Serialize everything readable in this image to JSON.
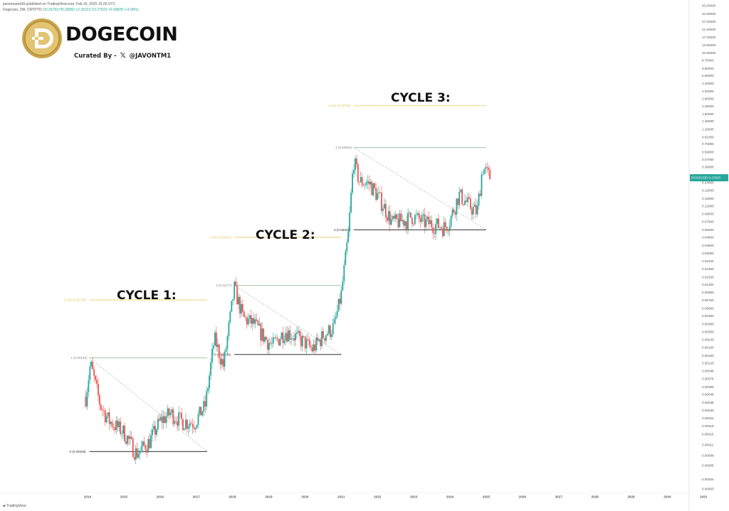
{
  "header": {
    "published_line": "javonmarks09 published on TradingView.com, Feb 16, 2025 15:29 UTC",
    "symbol_line": "Dogecoin, 2W, CRYPTO",
    "ohlc": "O0.26763 H0.28082 L0.25223 C0.27623 +0.00828 (+3.09%)"
  },
  "branding": {
    "title": "DOGECOIN",
    "curated_prefix": "Curated By -",
    "x_glyph": "𝕏",
    "handle": "@JAVONTM1"
  },
  "footer": {
    "logo_text": "TradingView"
  },
  "cycles": {
    "cycle1": "CYCLE 1:",
    "cycle2": "CYCLE 2:",
    "cycle3": "CYCLE 3:"
  },
  "colors": {
    "up": "#26a69a",
    "down": "#ef5350",
    "fib_gold": "#e6c65a",
    "fib_green": "#8ab89a",
    "price_tag": "#26a69a"
  },
  "chart_data": {
    "type": "candlestick",
    "timeframe": "2W",
    "scale": "log",
    "symbol": "DOGEUSD",
    "last_price": "0.27623",
    "last_change": "3.09%",
    "x_ticks": [
      "2014",
      "2015",
      "2016",
      "2017",
      "2018",
      "2019",
      "2020",
      "2021",
      "2022",
      "2023",
      "2024",
      "2025",
      "2026",
      "2027",
      "2028",
      "2029",
      "2030",
      "2031"
    ],
    "y_ticks": [
      "43.00000",
      "34.00000",
      "27.00000",
      "21.50000",
      "17.00000",
      "13.50000",
      "10.80000",
      "8.70000",
      "6.80000",
      "5.50000",
      "4.40000",
      "3.50000",
      "2.80000",
      "2.25000",
      "1.80000",
      "1.45000",
      "1.15000",
      "0.91000",
      "0.75000",
      "0.59000",
      "0.47000",
      "0.38000",
      "0.30000",
      "0.24000",
      "0.19000",
      "0.15000",
      "0.12000",
      "0.09600",
      "0.07600",
      "0.06000",
      "0.04800",
      "0.03800",
      "0.03000",
      "0.02400",
      "0.01900",
      "0.01500",
      "0.01200",
      "0.00960",
      "0.00760",
      "0.00600",
      "0.00480",
      "0.00380",
      "0.00300",
      "0.00240",
      "0.00190",
      "0.00150",
      "0.00120",
      "0.00096",
      "0.00076",
      "0.00060",
      "0.00048",
      "0.00038",
      "0.00030",
      "0.00024",
      "0.00019",
      "0.00015",
      "0.00011",
      "0.00008",
      "0.00006",
      "0.00004",
      "0.00003"
    ],
    "anchors": [
      {
        "t": 2013.95,
        "p": 0.00045
      },
      {
        "t": 2014.08,
        "p": 0.0012
      },
      {
        "t": 2014.35,
        "p": 0.00035
      },
      {
        "t": 2014.6,
        "p": 0.00022
      },
      {
        "t": 2015.0,
        "p": 0.00016
      },
      {
        "t": 2015.35,
        "p": 8.5e-05
      },
      {
        "t": 2015.7,
        "p": 0.00012
      },
      {
        "t": 2016.0,
        "p": 0.00022
      },
      {
        "t": 2016.3,
        "p": 0.00028
      },
      {
        "t": 2016.6,
        "p": 0.00022
      },
      {
        "t": 2016.95,
        "p": 0.00021
      },
      {
        "t": 2017.25,
        "p": 0.00035
      },
      {
        "t": 2017.5,
        "p": 0.0025
      },
      {
        "t": 2017.75,
        "p": 0.0011
      },
      {
        "t": 2018.0,
        "p": 0.0075
      },
      {
        "t": 2018.05,
        "p": 0.011
      },
      {
        "t": 2018.3,
        "p": 0.0045
      },
      {
        "t": 2018.6,
        "p": 0.0038
      },
      {
        "t": 2018.9,
        "p": 0.0025
      },
      {
        "t": 2019.1,
        "p": 0.002
      },
      {
        "t": 2019.45,
        "p": 0.0031
      },
      {
        "t": 2019.75,
        "p": 0.0026
      },
      {
        "t": 2020.0,
        "p": 0.0022
      },
      {
        "t": 2020.2,
        "p": 0.0018
      },
      {
        "t": 2020.5,
        "p": 0.0027
      },
      {
        "t": 2020.8,
        "p": 0.0035
      },
      {
        "t": 2021.0,
        "p": 0.009
      },
      {
        "t": 2021.2,
        "p": 0.055
      },
      {
        "t": 2021.34,
        "p": 0.47
      },
      {
        "t": 2021.5,
        "p": 0.25
      },
      {
        "t": 2021.8,
        "p": 0.23
      },
      {
        "t": 2022.1,
        "p": 0.14
      },
      {
        "t": 2022.4,
        "p": 0.075
      },
      {
        "t": 2022.8,
        "p": 0.08
      },
      {
        "t": 2022.95,
        "p": 0.09
      },
      {
        "t": 2023.3,
        "p": 0.075
      },
      {
        "t": 2023.6,
        "p": 0.07
      },
      {
        "t": 2023.85,
        "p": 0.065
      },
      {
        "t": 2024.0,
        "p": 0.08
      },
      {
        "t": 2024.25,
        "p": 0.17
      },
      {
        "t": 2024.55,
        "p": 0.12
      },
      {
        "t": 2024.75,
        "p": 0.1
      },
      {
        "t": 2024.9,
        "p": 0.38
      },
      {
        "t": 2025.12,
        "p": 0.276
      }
    ],
    "fib_levels": [
      {
        "cycle": "cycle1",
        "label": "1 (0.00140)",
        "value": 0.0014,
        "x_from": 2014.05,
        "x_to": 2017.3
      },
      {
        "cycle": "cycle1",
        "label": "0 (0.00009)",
        "value": 9e-05,
        "x_from": 2014.05,
        "x_to": 2017.3
      },
      {
        "cycle": "cycle1",
        "label": "1.618 (0.00768)",
        "value": 0.00768,
        "x_from": 2014.05,
        "x_to": 2017.3
      },
      {
        "cycle": "cycle2",
        "label": "1 (0.01177)",
        "value": 0.01177,
        "x_from": 2018.05,
        "x_to": 2021.0
      },
      {
        "cycle": "cycle2",
        "label": "0 (0.00155)",
        "value": 0.00155,
        "x_from": 2018.05,
        "x_to": 2021.0
      },
      {
        "cycle": "cycle2",
        "label": "1.618 (0.04815)",
        "value": 0.04815,
        "x_from": 2018.05,
        "x_to": 2021.0
      },
      {
        "cycle": "cycle3",
        "label": "1 (0.66950)",
        "value": 0.6695,
        "x_from": 2021.35,
        "x_to": 2025.0
      },
      {
        "cycle": "cycle3",
        "label": "0 (0.06004)",
        "value": 0.06004,
        "x_from": 2021.35,
        "x_to": 2025.0
      },
      {
        "cycle": "cycle3",
        "label": "1.618 (2.28756)",
        "value": 2.28756,
        "x_from": 2021.35,
        "x_to": 2025.0
      }
    ]
  }
}
